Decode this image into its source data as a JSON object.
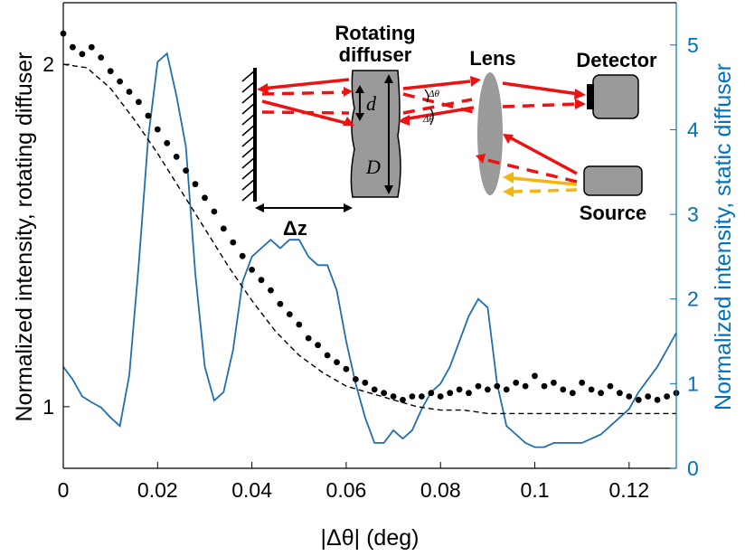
{
  "chart_data": {
    "type": "line",
    "xlabel": "|Δθ| (deg)",
    "ylabel_left": "Normalized intensity, rotating diffuser",
    "ylabel_right": "Normalized intensity, static diffuser",
    "xlim": [
      0,
      0.13
    ],
    "ylim_left": [
      0.82,
      2.18
    ],
    "ylim_right": [
      0,
      5.5
    ],
    "grid": false,
    "left_ticks": [
      1,
      2
    ],
    "right_ticks": [
      0,
      1,
      2,
      3,
      4,
      5
    ],
    "x_tick_labels": [
      "0",
      "0.02",
      "0.04",
      "0.06",
      "0.08",
      "0.1",
      "0.12"
    ],
    "colors": {
      "measured": "#000000",
      "fit": "#000000",
      "static": "#1f6fb0",
      "axis_right": "#0072bd",
      "arrow_red": "#ee1111",
      "arrow_yellow": "#f5b511",
      "gray": "#9a9a9a"
    },
    "series": [
      {
        "axis": "left",
        "style": "dots",
        "x": [
          0.0,
          0.002,
          0.004,
          0.006,
          0.008,
          0.01,
          0.012,
          0.014,
          0.016,
          0.018,
          0.02,
          0.022,
          0.024,
          0.026,
          0.028,
          0.03,
          0.032,
          0.034,
          0.036,
          0.038,
          0.04,
          0.042,
          0.044,
          0.046,
          0.048,
          0.05,
          0.052,
          0.054,
          0.056,
          0.058,
          0.06,
          0.062,
          0.064,
          0.066,
          0.068,
          0.07,
          0.072,
          0.074,
          0.076,
          0.078,
          0.08,
          0.082,
          0.084,
          0.086,
          0.088,
          0.09,
          0.092,
          0.094,
          0.096,
          0.098,
          0.1,
          0.102,
          0.104,
          0.106,
          0.108,
          0.11,
          0.112,
          0.114,
          0.116,
          0.118,
          0.12,
          0.122,
          0.124,
          0.126,
          0.128,
          0.13
        ],
        "values": [
          2.09,
          2.05,
          2.03,
          2.05,
          2.02,
          1.98,
          1.95,
          1.92,
          1.89,
          1.85,
          1.81,
          1.77,
          1.73,
          1.69,
          1.65,
          1.61,
          1.57,
          1.52,
          1.48,
          1.44,
          1.4,
          1.37,
          1.34,
          1.3,
          1.27,
          1.24,
          1.2,
          1.18,
          1.15,
          1.13,
          1.11,
          1.08,
          1.07,
          1.05,
          1.04,
          1.03,
          1.02,
          1.03,
          1.03,
          1.04,
          1.03,
          1.04,
          1.05,
          1.04,
          1.06,
          1.05,
          1.06,
          1.05,
          1.07,
          1.06,
          1.09,
          1.06,
          1.07,
          1.05,
          1.04,
          1.07,
          1.05,
          1.04,
          1.06,
          1.04,
          1.03,
          1.02,
          1.03,
          1.02,
          1.03,
          1.04
        ]
      },
      {
        "axis": "left",
        "style": "dashed",
        "x": [
          0.0,
          0.005,
          0.01,
          0.015,
          0.02,
          0.025,
          0.03,
          0.035,
          0.04,
          0.045,
          0.05,
          0.055,
          0.06,
          0.065,
          0.07,
          0.075,
          0.08,
          0.085,
          0.09,
          0.095,
          0.1,
          0.105,
          0.11,
          0.115,
          0.12,
          0.125,
          0.13
        ],
        "values": [
          2.0,
          1.99,
          1.93,
          1.84,
          1.74,
          1.63,
          1.52,
          1.41,
          1.31,
          1.22,
          1.15,
          1.1,
          1.06,
          1.04,
          1.02,
          1.0,
          0.99,
          0.99,
          0.98,
          0.98,
          0.98,
          0.98,
          0.98,
          0.98,
          0.98,
          0.98,
          0.98
        ]
      },
      {
        "axis": "right",
        "style": "line",
        "x": [
          0.0,
          0.002,
          0.004,
          0.006,
          0.008,
          0.01,
          0.012,
          0.014,
          0.016,
          0.018,
          0.02,
          0.022,
          0.024,
          0.026,
          0.028,
          0.03,
          0.032,
          0.034,
          0.036,
          0.038,
          0.04,
          0.042,
          0.044,
          0.046,
          0.048,
          0.05,
          0.052,
          0.054,
          0.056,
          0.058,
          0.06,
          0.062,
          0.064,
          0.066,
          0.068,
          0.07,
          0.072,
          0.074,
          0.076,
          0.078,
          0.08,
          0.082,
          0.084,
          0.086,
          0.088,
          0.09,
          0.092,
          0.094,
          0.096,
          0.098,
          0.1,
          0.102,
          0.104,
          0.106,
          0.108,
          0.11,
          0.112,
          0.114,
          0.116,
          0.118,
          0.12,
          0.122,
          0.124,
          0.126,
          0.128,
          0.13
        ],
        "values": [
          1.2,
          1.05,
          0.85,
          0.78,
          0.72,
          0.6,
          0.5,
          1.1,
          2.4,
          3.9,
          4.8,
          4.9,
          4.4,
          3.8,
          2.3,
          1.2,
          0.8,
          0.9,
          1.4,
          2.2,
          2.5,
          2.6,
          2.7,
          2.6,
          2.7,
          2.7,
          2.5,
          2.4,
          2.4,
          2.1,
          1.5,
          1.0,
          0.6,
          0.3,
          0.3,
          0.45,
          0.35,
          0.45,
          0.7,
          0.9,
          1.0,
          1.2,
          1.5,
          1.8,
          2.0,
          1.9,
          1.0,
          0.5,
          0.4,
          0.3,
          0.25,
          0.25,
          0.3,
          0.3,
          0.3,
          0.3,
          0.35,
          0.4,
          0.5,
          0.6,
          0.7,
          0.9,
          1.05,
          1.2,
          1.4,
          1.6
        ]
      }
    ],
    "inset": {
      "labels": {
        "rotating_diffuser": [
          "Rotating",
          "diffuser"
        ],
        "lens": "Lens",
        "detector": "Detector",
        "source": "Source",
        "dz": "Δz",
        "d_small": "d",
        "d_big": "D",
        "dtheta": "Δθ"
      }
    }
  }
}
